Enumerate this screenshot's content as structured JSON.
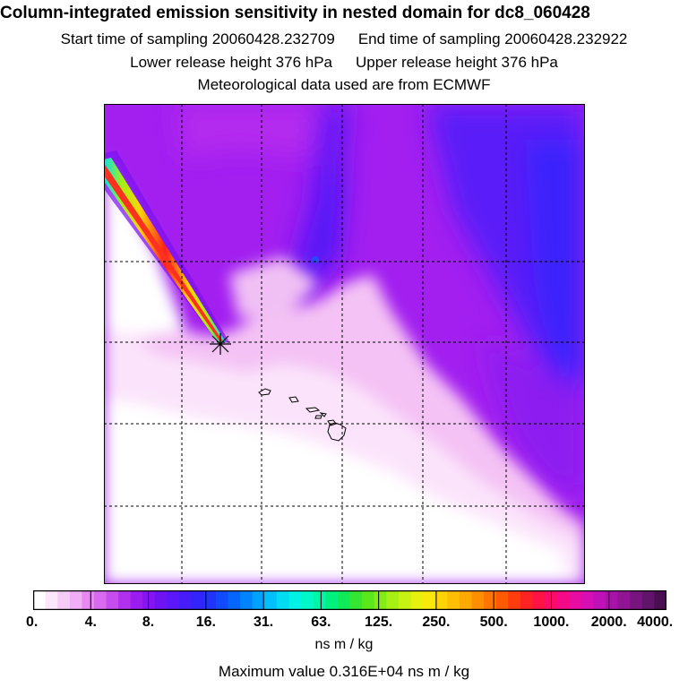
{
  "header": {
    "title": "Column-integrated emission sensitivity in nested domain for dc8_060428",
    "start_time": "Start time of sampling 20060428.232709",
    "end_time": "End time of sampling 20060428.232922",
    "lower_height": "Lower release height  376 hPa",
    "upper_height": "Upper release height  376 hPa",
    "met_data": "Meteorological data used are from ECMWF"
  },
  "map": {
    "marker_icon": "star-release-marker-icon",
    "features": [
      "emission-plume",
      "hawaiian-islands-coastline",
      "grid-lines"
    ]
  },
  "colorbar": {
    "labels": [
      "0.",
      "4.",
      "8.",
      "16.",
      "31.",
      "63.",
      "125.",
      "250.",
      "500.",
      "1000.",
      "2000.",
      "4000."
    ],
    "colors": [
      "#ffffff",
      "#fbe6fb",
      "#f6ccf6",
      "#f0aef6",
      "#e68af2",
      "#d86af0",
      "#c64cee",
      "#b030ee",
      "#9a1cee",
      "#8414f2",
      "#6e14f4",
      "#5a18f8",
      "#461cfa",
      "#3424fc",
      "#2034fe",
      "#104cfe",
      "#0466fe",
      "#0084fe",
      "#00a2fe",
      "#00c0fa",
      "#00dcf2",
      "#00f2e6",
      "#00f8c8",
      "#00f6a6",
      "#00f080",
      "#10ea58",
      "#34e632",
      "#5ae81c",
      "#82ec14",
      "#a6f014",
      "#c8f212",
      "#e6f20e",
      "#fae80a",
      "#fed406",
      "#febe04",
      "#fea802",
      "#fe9000",
      "#fe7600",
      "#fe5a04",
      "#fe3c10",
      "#fe2222",
      "#fe1444",
      "#fc0c66",
      "#f40a86",
      "#e80ca2",
      "#d60eb4",
      "#c010b8",
      "#a812a8",
      "#901494",
      "#781480",
      "#60146a",
      "#4a0e52"
    ],
    "units": "ns m / kg"
  },
  "footer": {
    "max_value": "Maximum value  0.316E+04 ns m / kg"
  },
  "colors": {
    "field_base": "#a520f0",
    "field_deep": "#4a18f8",
    "plume_core": "#fe1e1e",
    "plume_edge": "#00dcf2"
  }
}
